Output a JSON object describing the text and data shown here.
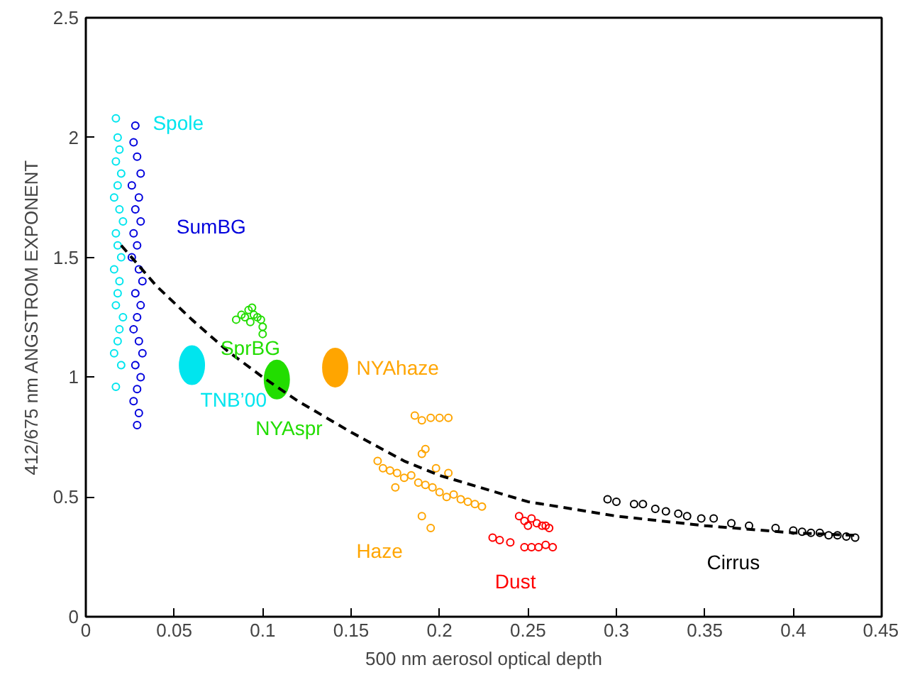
{
  "chart_data": {
    "type": "scatter",
    "xlabel": "500 nm aerosol optical depth",
    "ylabel": "412/675 nm ANGSTROM EXPONENT",
    "xlim": [
      0,
      0.45
    ],
    "ylim": [
      0,
      2.5
    ],
    "xticks": [
      0,
      0.05,
      0.1,
      0.15,
      0.2,
      0.25,
      0.3,
      0.35,
      0.4,
      0.45
    ],
    "yticks": [
      0,
      0.5,
      1,
      1.5,
      2,
      2.5
    ],
    "grid": false,
    "marker": "circle",
    "series": [
      {
        "name": "Spole",
        "color": "#00e5ee",
        "x": [
          0.017,
          0.018,
          0.019,
          0.017,
          0.02,
          0.018,
          0.016,
          0.019,
          0.021,
          0.017,
          0.018,
          0.02,
          0.016,
          0.019,
          0.018,
          0.017,
          0.021,
          0.019,
          0.018,
          0.016,
          0.02,
          0.017
        ],
        "values": [
          2.08,
          2.0,
          1.95,
          1.9,
          1.85,
          1.8,
          1.75,
          1.7,
          1.65,
          1.6,
          1.55,
          1.5,
          1.45,
          1.4,
          1.35,
          1.3,
          1.25,
          1.2,
          1.15,
          1.1,
          1.05,
          0.96
        ]
      },
      {
        "name": "SumBG",
        "color": "#0000dd",
        "x": [
          0.028,
          0.027,
          0.029,
          0.031,
          0.026,
          0.03,
          0.028,
          0.031,
          0.027,
          0.029,
          0.026,
          0.03,
          0.032,
          0.028,
          0.031,
          0.029,
          0.027,
          0.03,
          0.032,
          0.028,
          0.031,
          0.029,
          0.027,
          0.03,
          0.029
        ],
        "values": [
          2.05,
          1.98,
          1.92,
          1.85,
          1.8,
          1.75,
          1.7,
          1.65,
          1.6,
          1.55,
          1.5,
          1.45,
          1.4,
          1.35,
          1.3,
          1.25,
          1.2,
          1.15,
          1.1,
          1.05,
          1.0,
          0.95,
          0.9,
          0.85,
          0.8
        ]
      },
      {
        "name": "SprBG",
        "color": "#22dd00",
        "x": [
          0.085,
          0.088,
          0.09,
          0.092,
          0.094,
          0.095,
          0.097,
          0.099,
          0.1,
          0.1,
          0.093
        ],
        "values": [
          1.24,
          1.26,
          1.25,
          1.28,
          1.29,
          1.26,
          1.25,
          1.24,
          1.21,
          1.18,
          1.23
        ]
      },
      {
        "name": "TNB’00",
        "type": "bubble",
        "color": "#00e5ee",
        "x": [
          0.06
        ],
        "values": [
          1.05
        ],
        "sizes": [
          1
        ]
      },
      {
        "name": "NYAspr",
        "type": "bubble",
        "color": "#22dd00",
        "x": [
          0.108
        ],
        "values": [
          0.99
        ],
        "sizes": [
          1
        ]
      },
      {
        "name": "NYAhaze",
        "type": "bubble",
        "color": "#ffa500",
        "x": [
          0.141
        ],
        "values": [
          1.04
        ],
        "sizes": [
          1
        ]
      },
      {
        "name": "Haze",
        "color": "#ffa500",
        "x": [
          0.165,
          0.168,
          0.172,
          0.176,
          0.18,
          0.184,
          0.188,
          0.192,
          0.196,
          0.2,
          0.204,
          0.208,
          0.212,
          0.216,
          0.22,
          0.224,
          0.19,
          0.192,
          0.186,
          0.19,
          0.195,
          0.2,
          0.205,
          0.19,
          0.195,
          0.205,
          0.198,
          0.175
        ],
        "values": [
          0.65,
          0.62,
          0.61,
          0.6,
          0.58,
          0.59,
          0.56,
          0.55,
          0.54,
          0.52,
          0.5,
          0.51,
          0.49,
          0.48,
          0.47,
          0.46,
          0.68,
          0.7,
          0.84,
          0.82,
          0.83,
          0.83,
          0.83,
          0.42,
          0.37,
          0.6,
          0.62,
          0.54
        ]
      },
      {
        "name": "Dust",
        "color": "#ff0000",
        "x": [
          0.245,
          0.248,
          0.25,
          0.252,
          0.255,
          0.258,
          0.26,
          0.262,
          0.23,
          0.234,
          0.24,
          0.248,
          0.252,
          0.256,
          0.26,
          0.264
        ],
        "values": [
          0.42,
          0.4,
          0.38,
          0.41,
          0.39,
          0.38,
          0.38,
          0.37,
          0.33,
          0.32,
          0.31,
          0.29,
          0.29,
          0.29,
          0.3,
          0.29
        ]
      },
      {
        "name": "Cirrus",
        "color": "#000000",
        "x": [
          0.295,
          0.3,
          0.31,
          0.315,
          0.322,
          0.328,
          0.335,
          0.34,
          0.348,
          0.355,
          0.365,
          0.375,
          0.39,
          0.4,
          0.405,
          0.41,
          0.415,
          0.42,
          0.425,
          0.43,
          0.435
        ],
        "values": [
          0.49,
          0.48,
          0.47,
          0.47,
          0.45,
          0.44,
          0.43,
          0.42,
          0.41,
          0.41,
          0.39,
          0.38,
          0.37,
          0.36,
          0.355,
          0.35,
          0.35,
          0.34,
          0.34,
          0.335,
          0.33
        ]
      },
      {
        "type": "line",
        "line_style": "dashed",
        "marker": "none",
        "color": "#000000",
        "x": [
          0.02,
          0.04,
          0.06,
          0.08,
          0.1,
          0.12,
          0.15,
          0.18,
          0.2,
          0.25,
          0.3,
          0.35,
          0.4,
          0.435
        ],
        "values": [
          1.55,
          1.38,
          1.24,
          1.11,
          1.0,
          0.9,
          0.77,
          0.65,
          0.59,
          0.48,
          0.42,
          0.38,
          0.35,
          0.34
        ]
      }
    ]
  }
}
